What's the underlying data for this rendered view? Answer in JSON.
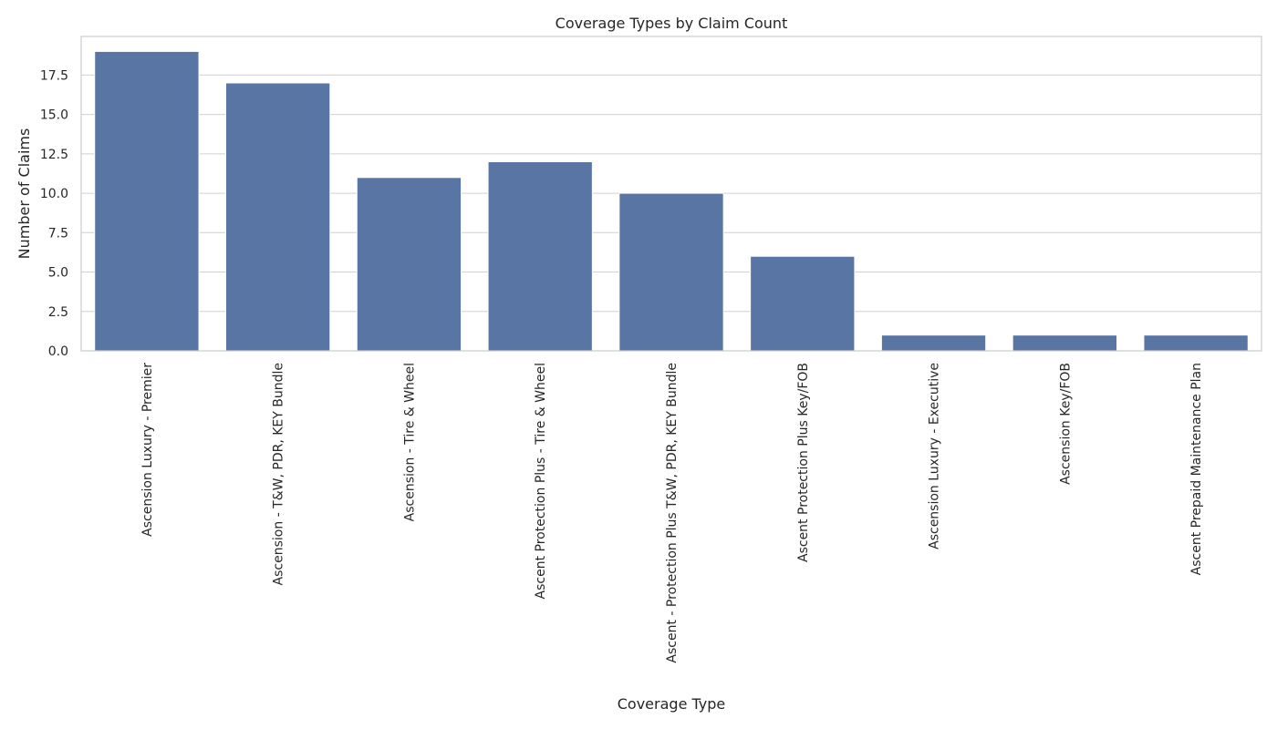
{
  "chart_data": {
    "type": "bar",
    "title": "Coverage Types by Claim Count",
    "xlabel": "Coverage Type",
    "ylabel": "Number of Claims",
    "categories": [
      "Ascension Luxury - Premier",
      "Ascension - T&W, PDR, KEY Bundle",
      "Ascension - Tire & Wheel",
      "Ascent Protection Plus - Tire & Wheel",
      "Ascent - Protection Plus T&W, PDR, KEY Bundle",
      "Ascent Protection Plus Key/FOB",
      "Ascension Luxury - Executive",
      "Ascension Key/FOB",
      "Ascent Prepaid Maintenance Plan"
    ],
    "values": [
      19,
      17,
      11,
      12,
      10,
      6,
      1,
      1,
      1
    ],
    "ylim": [
      0,
      19.95
    ],
    "yticks": [
      "0.0",
      "2.5",
      "5.0",
      "7.5",
      "10.0",
      "12.5",
      "15.0",
      "17.5"
    ],
    "grid": "horizontal",
    "bar_color": "#5975a4",
    "grid_color": "#d0d0d0",
    "frame_color": "#cccccc"
  }
}
